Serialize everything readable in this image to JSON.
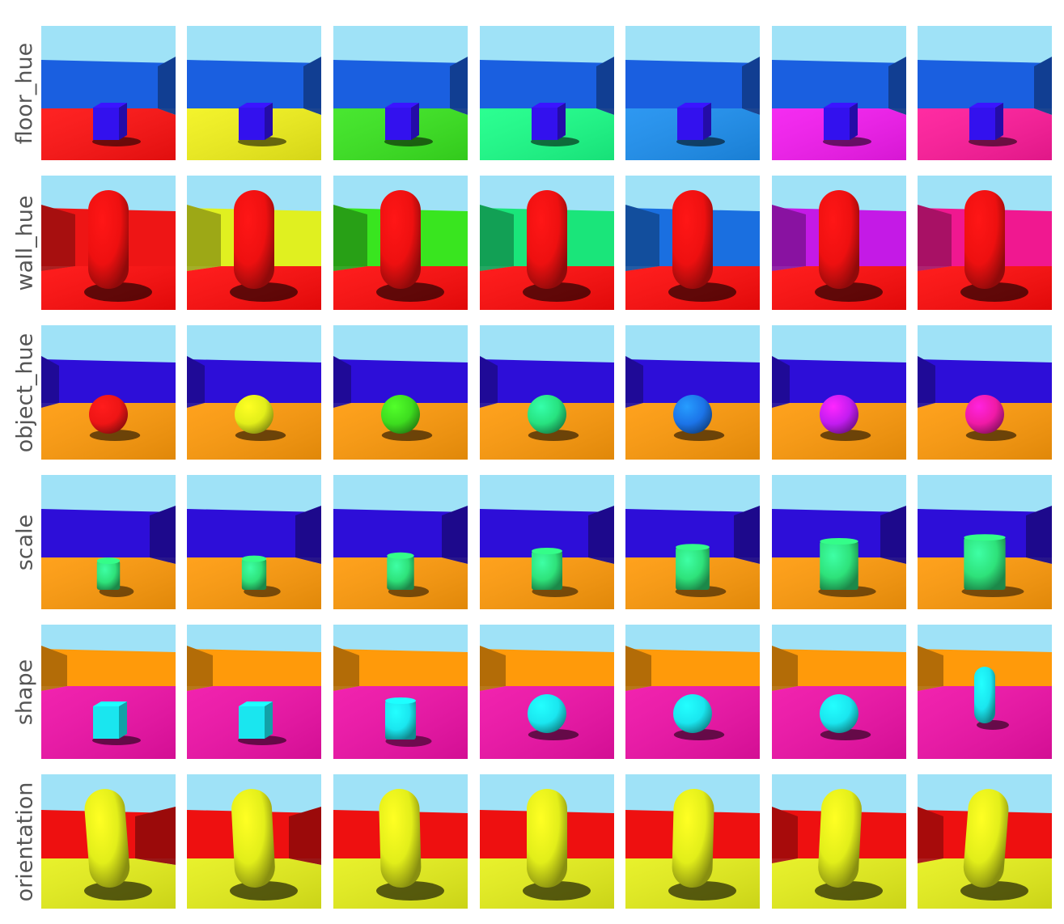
{
  "rows": [
    {
      "label": "floor_hue",
      "scene": {
        "sky": "#9fe2f7",
        "walls": "fixed",
        "wall_color": "#1a5fe0",
        "floor": "varies",
        "floor_color": "#ff0000",
        "object": "cube",
        "object_color": "#3311ee"
      },
      "floor_colors": [
        "#ff1010",
        "#f2f21a",
        "#39e51f",
        "#1aff88",
        "#1c8ff0",
        "#f41af0",
        "#ff1a9a"
      ]
    },
    {
      "label": "wall_hue",
      "scene": {
        "sky": "#9fe2f7",
        "floor_color": "#ff0a0a",
        "object": "capsule",
        "object_color": "#ee1010"
      },
      "wall_colors": [
        "#ee1515",
        "#e0f020",
        "#39e51f",
        "#1ae57a",
        "#1a6fe0",
        "#c41ae6",
        "#f01890"
      ]
    },
    {
      "label": "object_hue",
      "scene": {
        "sky": "#9fe2f7",
        "wall_color": "#2d0ed8",
        "floor_color": "#ff9a0a",
        "object": "sphere"
      },
      "object_colors": [
        "#ee1515",
        "#e2ee1a",
        "#3ddc1f",
        "#27e27f",
        "#1c74e8",
        "#c21cf0",
        "#f01aa6"
      ]
    },
    {
      "label": "scale",
      "scene": {
        "sky": "#9fe2f7",
        "wall_color": "#2d0ed8",
        "floor_color": "#ff9a0a",
        "object": "cylinder",
        "object_color": "#2ee27a"
      },
      "scales": [
        0.75,
        0.8,
        0.88,
        1.0,
        1.1,
        1.25,
        1.35
      ]
    },
    {
      "label": "shape",
      "scene": {
        "sky": "#9fe2f7",
        "wall_color": "#ff9a0a",
        "floor_color": "#f010a8",
        "object_color": "#1ae6ef"
      },
      "shapes": [
        "cube",
        "cube",
        "cylinder",
        "sphere",
        "sphere",
        "sphere",
        "capsule"
      ]
    },
    {
      "label": "orientation",
      "scene": {
        "sky": "#9fe2f7",
        "wall_color": "#ee1010",
        "floor_color": "#e6f01a",
        "object": "capsule",
        "object_color": "#e2ee1a"
      },
      "orientations": [
        -30,
        -20,
        -10,
        0,
        10,
        20,
        30
      ]
    }
  ]
}
